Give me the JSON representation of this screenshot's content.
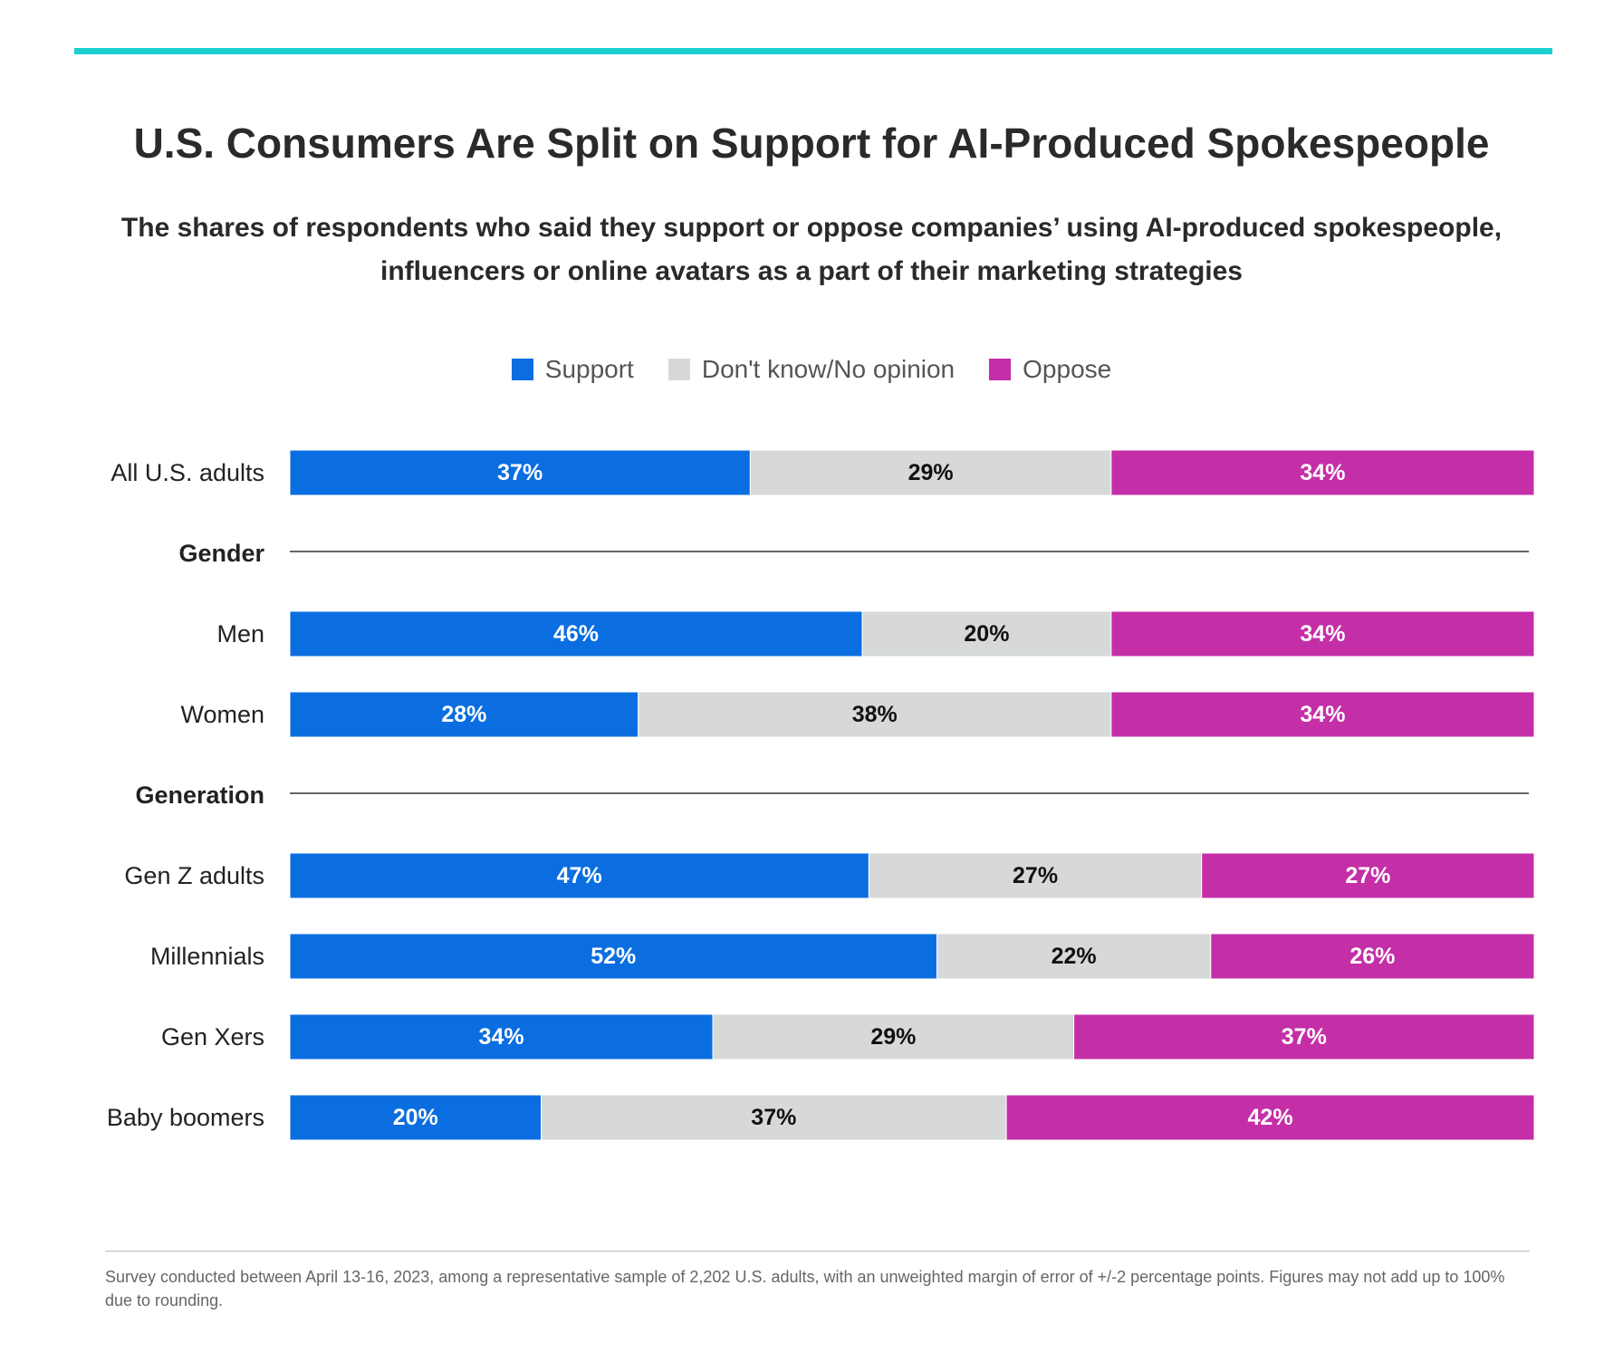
{
  "title": "U.S. Consumers Are Split on Support for AI-Produced Spokespeople",
  "subtitle": "The shares of respondents who said they support or oppose companies’ using AI-produced spokespeople, influencers or online avatars as a part of their marketing strategies",
  "legend": [
    {
      "label": "Support",
      "color": "#0b6ee0"
    },
    {
      "label": "Don't know/No opinion",
      "color": "#d6d8d9"
    },
    {
      "label": "Oppose",
      "color": "#c42fa8"
    }
  ],
  "footnote": "Survey conducted between April 13-16, 2023, among a representative sample of 2,202 U.S. adults, with an unweighted margin of error of +/-2 percentage points. Figures may not add up to 100% due to rounding.",
  "chart_data": {
    "type": "bar",
    "orientation": "horizontal",
    "stacked": true,
    "series_names": [
      "Support",
      "Don't know/No opinion",
      "Oppose"
    ],
    "rows": [
      {
        "kind": "bar",
        "label": "All U.S. adults",
        "values": [
          37,
          29,
          34
        ],
        "display": [
          "37%",
          "29%",
          "34%"
        ]
      },
      {
        "kind": "group",
        "label": "Gender"
      },
      {
        "kind": "bar",
        "label": "Men",
        "values": [
          46,
          20,
          34
        ],
        "display": [
          "46%",
          "20%",
          "34%"
        ]
      },
      {
        "kind": "bar",
        "label": "Women",
        "values": [
          28,
          38,
          34
        ],
        "display": [
          "28%",
          "38%",
          "34%"
        ]
      },
      {
        "kind": "group",
        "label": "Generation"
      },
      {
        "kind": "bar",
        "label": "Gen Z adults",
        "values": [
          47,
          27,
          27
        ],
        "display": [
          "47%",
          "27%",
          "27%"
        ]
      },
      {
        "kind": "bar",
        "label": "Millennials",
        "values": [
          52,
          22,
          26
        ],
        "display": [
          "52%",
          "22%",
          "26%"
        ]
      },
      {
        "kind": "bar",
        "label": "Gen Xers",
        "values": [
          34,
          29,
          37
        ],
        "display": [
          "34%",
          "29%",
          "37%"
        ]
      },
      {
        "kind": "bar",
        "label": "Baby boomers",
        "values": [
          20,
          37,
          42
        ],
        "display": [
          "20%",
          "37%",
          "42%"
        ]
      }
    ]
  }
}
